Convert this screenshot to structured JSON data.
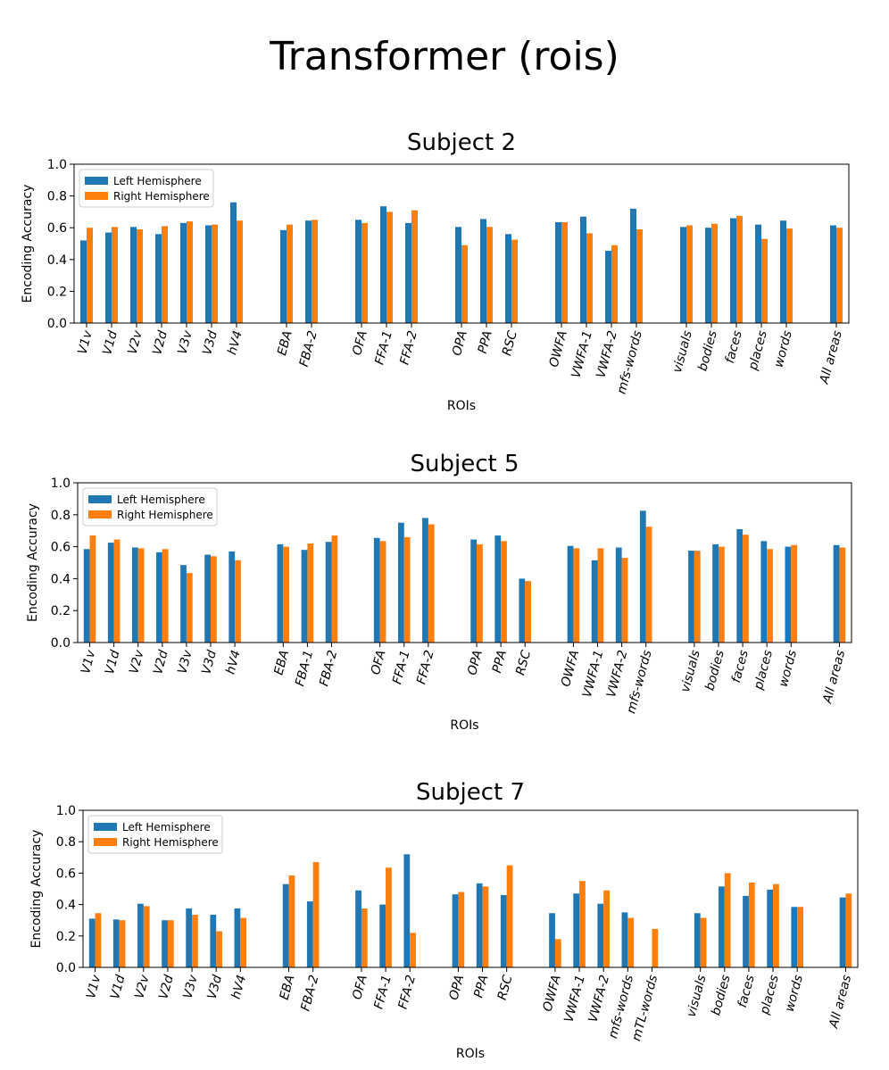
{
  "title": "Transformer (rois)",
  "colors": {
    "left": "#1f77b4",
    "right": "#ff7f0e",
    "axis": "#000000"
  },
  "chart_data": [
    {
      "type": "bar",
      "title": "Subject 2",
      "xlabel": "ROIs",
      "ylabel": "Encoding Accuracy",
      "ylim": [
        0,
        1.0
      ],
      "yticks": [
        "0.0",
        "0.2",
        "0.4",
        "0.6",
        "0.8",
        "1.0"
      ],
      "legend": {
        "position": "top-left",
        "entries": [
          "Left Hemisphere",
          "Right Hemisphere"
        ]
      },
      "categories": [
        "V1v",
        "V1d",
        "V2v",
        "V2d",
        "V3v",
        "V3d",
        "hV4",
        "",
        "EBA",
        "FBA-2",
        "",
        "OFA",
        "FFA-1",
        "FFA-2",
        "",
        "OPA",
        "PPA",
        "RSC",
        "",
        "OWFA",
        "VWFA-1",
        "VWFA-2",
        "mfs-words",
        "",
        "visuals",
        "bodies",
        "faces",
        "places",
        "words",
        "",
        "All areas"
      ],
      "series": [
        {
          "name": "Left Hemisphere",
          "values": [
            0.52,
            0.57,
            0.605,
            0.56,
            0.63,
            0.615,
            0.76,
            null,
            0.585,
            0.645,
            null,
            0.65,
            0.735,
            0.63,
            null,
            0.605,
            0.655,
            0.56,
            null,
            0.635,
            0.67,
            0.455,
            0.72,
            null,
            0.605,
            0.6,
            0.66,
            0.62,
            0.645,
            null,
            0.615
          ]
        },
        {
          "name": "Right Hemisphere",
          "values": [
            0.6,
            0.605,
            0.59,
            0.61,
            0.64,
            0.62,
            0.645,
            null,
            0.62,
            0.65,
            null,
            0.63,
            0.7,
            0.71,
            null,
            0.49,
            0.605,
            0.525,
            null,
            0.635,
            0.565,
            0.49,
            0.59,
            null,
            0.615,
            0.625,
            0.675,
            0.53,
            0.595,
            null,
            0.6
          ]
        }
      ]
    },
    {
      "type": "bar",
      "title": "Subject 5",
      "xlabel": "ROIs",
      "ylabel": "Encoding Accuracy",
      "ylim": [
        0,
        1.0
      ],
      "yticks": [
        "0.0",
        "0.2",
        "0.4",
        "0.6",
        "0.8",
        "1.0"
      ],
      "legend": {
        "position": "top-left",
        "entries": [
          "Left Hemisphere",
          "Right Hemisphere"
        ]
      },
      "categories": [
        "V1v",
        "V1d",
        "V2v",
        "V2d",
        "V3v",
        "V3d",
        "hV4",
        "",
        "EBA",
        "FBA-1",
        "FBA-2",
        "",
        "OFA",
        "FFA-1",
        "FFA-2",
        "",
        "OPA",
        "PPA",
        "RSC",
        "",
        "OWFA",
        "VWFA-1",
        "VWFA-2",
        "mfs-words",
        "",
        "visuals",
        "bodies",
        "faces",
        "places",
        "words",
        "",
        "All areas"
      ],
      "series": [
        {
          "name": "Left Hemisphere",
          "values": [
            0.585,
            0.625,
            0.595,
            0.565,
            0.485,
            0.55,
            0.57,
            null,
            0.615,
            0.58,
            0.63,
            null,
            0.655,
            0.75,
            0.78,
            null,
            0.645,
            0.67,
            0.4,
            null,
            0.605,
            0.515,
            0.595,
            0.825,
            null,
            0.575,
            0.615,
            0.71,
            0.635,
            0.6,
            null,
            0.61
          ]
        },
        {
          "name": "Right Hemisphere",
          "values": [
            0.67,
            0.645,
            0.59,
            0.585,
            0.435,
            0.54,
            0.515,
            null,
            0.6,
            0.62,
            0.67,
            null,
            0.635,
            0.66,
            0.74,
            null,
            0.615,
            0.635,
            0.385,
            null,
            0.59,
            0.59,
            0.53,
            0.725,
            null,
            0.575,
            0.6,
            0.675,
            0.585,
            0.61,
            null,
            0.595
          ]
        }
      ]
    },
    {
      "type": "bar",
      "title": "Subject 7",
      "xlabel": "ROIs",
      "ylabel": "Encoding Accuracy",
      "ylim": [
        0,
        1.0
      ],
      "yticks": [
        "0.0",
        "0.2",
        "0.4",
        "0.6",
        "0.8",
        "1.0"
      ],
      "legend": {
        "position": "top-left",
        "entries": [
          "Left Hemisphere",
          "Right Hemisphere"
        ]
      },
      "categories": [
        "V1v",
        "V1d",
        "V2v",
        "V2d",
        "V3v",
        "V3d",
        "hV4",
        "",
        "EBA",
        "FBA-2",
        "",
        "OFA",
        "FFA-1",
        "FFA-2",
        "",
        "OPA",
        "PPA",
        "RSC",
        "",
        "OWFA",
        "VWFA-1",
        "VWFA-2",
        "mfs-words",
        "mTL-words",
        "",
        "visuals",
        "bodies",
        "faces",
        "places",
        "words",
        "",
        "All areas"
      ],
      "series": [
        {
          "name": "Left Hemisphere",
          "values": [
            0.31,
            0.305,
            0.405,
            0.3,
            0.375,
            0.335,
            0.375,
            null,
            0.53,
            0.42,
            null,
            0.49,
            0.4,
            0.72,
            null,
            0.465,
            0.535,
            0.46,
            null,
            0.345,
            0.47,
            0.405,
            0.35,
            null,
            null,
            0.345,
            0.515,
            0.455,
            0.495,
            0.385,
            null,
            0.445
          ]
        },
        {
          "name": "Right Hemisphere",
          "values": [
            0.345,
            0.3,
            0.39,
            0.3,
            0.335,
            0.23,
            0.315,
            null,
            0.585,
            0.67,
            null,
            0.375,
            0.635,
            0.22,
            null,
            0.48,
            0.515,
            0.65,
            null,
            0.18,
            0.55,
            0.49,
            0.315,
            0.245,
            null,
            0.315,
            0.6,
            0.54,
            0.53,
            0.385,
            null,
            0.47
          ]
        }
      ]
    }
  ]
}
